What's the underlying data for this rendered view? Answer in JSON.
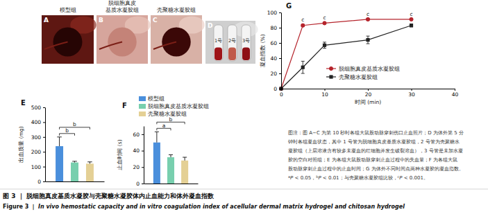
{
  "panels": [
    {
      "label": "A",
      "group_label": [
        "模型组"
      ]
    },
    {
      "label": "B",
      "group_label": [
        "脱细胞真皮",
        "基质水凝胶组"
      ]
    },
    {
      "label": "C",
      "group_label": [
        "壳聚糖水凝胶组"
      ]
    },
    {
      "label": "D",
      "tube_labels": [
        "1号",
        "2号",
        "3号"
      ]
    }
  ],
  "chart_data": [
    {
      "type": "bar",
      "label": "E",
      "y_label": "出血质量 (mg)",
      "categories": [
        null
      ],
      "series": [
        {
          "name": "模型组",
          "color": "#4a8fdc",
          "values": [
            238
          ],
          "errors": [
            62
          ]
        },
        {
          "name": "脱细胞真皮基质水凝胶组",
          "color": "#78cfae",
          "values": [
            128
          ],
          "errors": [
            8
          ]
        },
        {
          "name": "壳聚糖水凝胶组",
          "color": "#e4d095",
          "values": [
            120
          ],
          "errors": [
            12
          ]
        }
      ],
      "ylim": [
        0,
        500
      ],
      "yticks": [
        0,
        100,
        200,
        300,
        400,
        500
      ],
      "tick_labels": "y",
      "legend": "right",
      "annotations": [
        {
          "text": "b",
          "between": [
            "模型组",
            "脱细胞真皮基质水凝胶组"
          ]
        },
        {
          "text": "b",
          "between": [
            "模型组",
            "壳聚糖水凝胶组"
          ]
        }
      ]
    },
    {
      "type": "bar",
      "label": "F",
      "y_label": "止血时间 (s)",
      "categories": [
        null
      ],
      "series": [
        {
          "name": "模型组",
          "color": "#4a8fdc",
          "values": [
            50
          ],
          "errors": [
            13
          ]
        },
        {
          "name": "脱细胞真皮基质水凝胶组",
          "color": "#78cfae",
          "values": [
            32
          ],
          "errors": [
            3
          ]
        },
        {
          "name": "壳聚糖水凝胶组",
          "color": "#e4d095",
          "values": [
            28
          ],
          "errors": [
            4
          ]
        }
      ],
      "ylim": [
        0,
        70
      ],
      "yticks": [
        0,
        20,
        40,
        60
      ],
      "tick_labels": "y",
      "annotations": [
        {
          "text": "a",
          "between": [
            "模型组",
            "脱细胞真皮基质水凝胶组"
          ]
        },
        {
          "text": "b",
          "between": [
            "模型组",
            "壳聚糖水凝胶组"
          ]
        }
      ]
    },
    {
      "type": "line",
      "label": "G",
      "x_label": "时间 (min)",
      "y_label": "凝血指数 (%)",
      "x": [
        0,
        5,
        10,
        20,
        30
      ],
      "series": [
        {
          "name": "脱细胞真皮基质水凝胶组",
          "color": "#b5242c",
          "marker": "circle",
          "values": [
            0,
            83,
            86,
            91,
            91
          ],
          "errors": [
            0,
            1.5,
            1,
            1,
            1
          ],
          "point_labels": [
            null,
            "c",
            "c",
            "c",
            "c"
          ]
        },
        {
          "name": "壳聚糖水凝胶组",
          "color": "#222222",
          "marker": "square",
          "values": [
            0,
            28,
            57,
            64,
            83
          ],
          "errors": [
            0,
            8,
            4,
            5,
            2
          ]
        }
      ],
      "xlim": [
        0,
        40
      ],
      "xticks": [
        0,
        10,
        20,
        30,
        40
      ],
      "ylim": [
        0,
        100
      ],
      "yticks": [
        0,
        20,
        40,
        60,
        80,
        100
      ],
      "legend": "right"
    }
  ],
  "caption": {
    "lines": [
      "图注：图 A−C 为第 10 秒时各组大鼠股动脉穿刺伤口止血照片；D 为体外第 5 分",
      "钟时各组凝血状态，其中 1 号管为脱细胞真皮基质水凝胶组，2 号管为壳聚糖水",
      "凝胶组（上层溶液含有较多未凝血的红细胞并发生破裂溶血），3 号管是未加水凝",
      "胶的空白对照组；E 为各组大鼠股动脉穿刺止血过程中的失血量；F 为各组大鼠",
      "股动脉穿刺止血过程中的止血时间；G 为体外不同时间点两种水凝胶的凝血指数。"
    ],
    "last_line": [
      {
        "text": "a",
        "style": "sup"
      },
      {
        "text": "P",
        "style": "italic"
      },
      {
        "text": " < 0.05，",
        "style": "normal"
      },
      {
        "text": "b",
        "style": "sup"
      },
      {
        "text": "P",
        "style": "italic"
      },
      {
        "text": " < 0.01；与壳聚糖水凝胶组比较，",
        "style": "normal"
      },
      {
        "text": "c",
        "style": "sup"
      },
      {
        "text": "P",
        "style": "italic"
      },
      {
        "text": " < 0.001。",
        "style": "normal"
      }
    ]
  },
  "figure_title": {
    "zh": "图 3 ｜ 脱细胞真皮基质水凝胶与壳聚糖水凝胶体内止血能力和体外凝血指数",
    "en_label": "Figure 3 ｜ ",
    "en": "In vivo hemostatic capacity and in vitro coagulation index of acellular dermal matrix hydrogel and chitosan hydrogel"
  }
}
